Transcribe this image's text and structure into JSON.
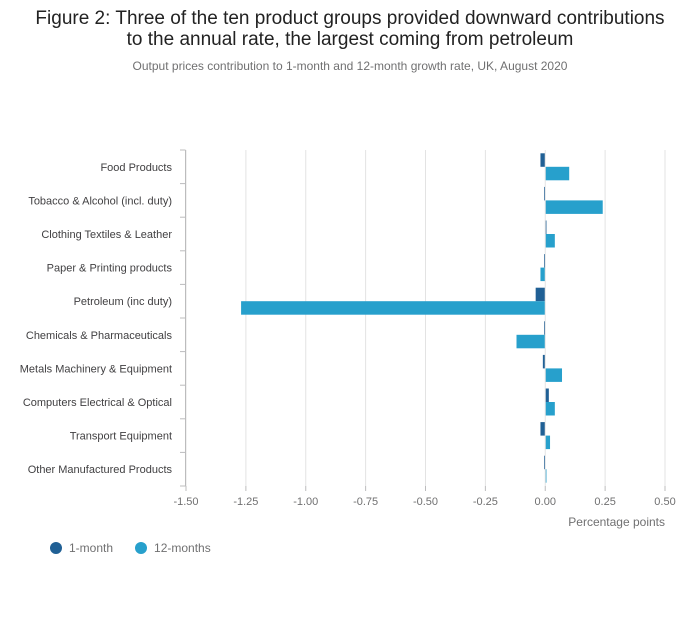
{
  "header": {
    "title": "Figure 2: Three of the ten product groups provided downward contributions to the annual rate, the largest coming from petroleum",
    "subtitle": "Output prices contribution to 1-month and 12-month growth rate, UK, August 2020"
  },
  "chart_data": {
    "type": "bar",
    "orientation": "horizontal",
    "categories": [
      "Food Products",
      "Tobacco & Alcohol (incl. duty)",
      "Clothing Textiles & Leather",
      "Paper & Printing products",
      "Petroleum (inc duty)",
      "Chemicals & Pharmaceuticals",
      "Metals Machinery & Equipment",
      "Computers Electrical & Optical",
      "Transport Equipment",
      "Other Manufactured Products"
    ],
    "series": [
      {
        "name": "1-month",
        "color": "#206095",
        "values": [
          -0.02,
          -0.005,
          0.005,
          -0.005,
          -0.04,
          -0.005,
          -0.01,
          0.015,
          -0.02,
          -0.005
        ]
      },
      {
        "name": "12-months",
        "color": "#27a0cc",
        "values": [
          0.1,
          0.24,
          0.04,
          -0.02,
          -1.27,
          -0.12,
          0.07,
          0.04,
          0.02,
          0.005
        ]
      }
    ],
    "xlabel": "Percentage points",
    "xlim": [
      -1.5,
      0.5
    ],
    "xticks": [
      "-1.50",
      "-1.25",
      "-1.00",
      "-0.75",
      "-0.50",
      "-0.25",
      "0.00",
      "0.25",
      "0.50"
    ],
    "xtick_values": [
      -1.5,
      -1.25,
      -1.0,
      -0.75,
      -0.5,
      -0.25,
      0.0,
      0.25,
      0.5
    ],
    "grid": true,
    "legend_position": "bottom-left"
  }
}
